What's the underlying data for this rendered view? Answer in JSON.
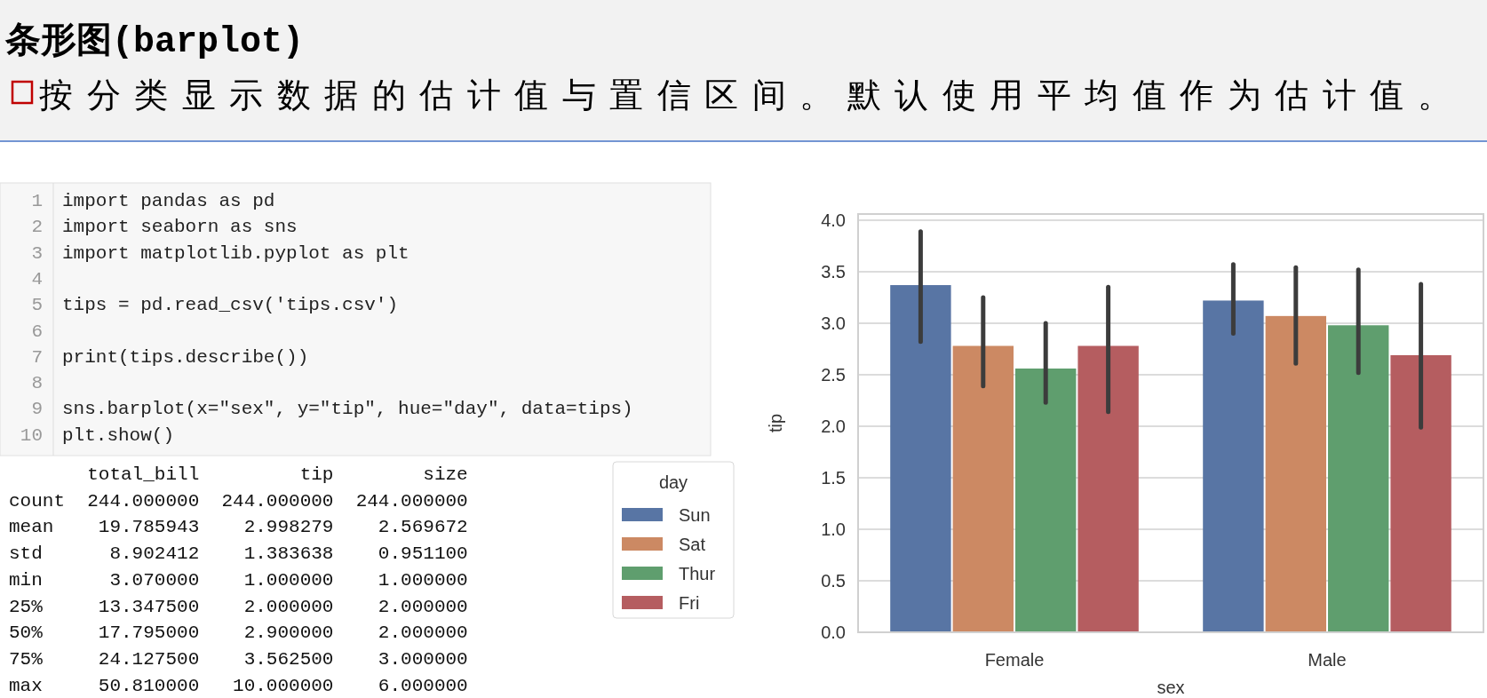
{
  "chart_data": {
    "type": "bar",
    "title": "条形图(barplot)",
    "subtitle": "按分类显示数据的估计值与置信区间。默认使用平均值作为估计值。",
    "xlabel": "sex",
    "ylabel": "tip",
    "legend_title": "day",
    "categories": [
      "Female",
      "Male"
    ],
    "series": [
      {
        "name": "Sun",
        "color": "#5875a4",
        "values": [
          3.37,
          3.22
        ],
        "errors": [
          [
            2.82,
            3.89
          ],
          [
            2.9,
            3.57
          ]
        ]
      },
      {
        "name": "Sat",
        "color": "#cc8963",
        "values": [
          2.78,
          3.07
        ],
        "errors": [
          [
            2.39,
            3.25
          ],
          [
            2.61,
            3.54
          ]
        ]
      },
      {
        "name": "Thur",
        "color": "#5f9e6e",
        "values": [
          2.56,
          2.98
        ],
        "errors": [
          [
            2.23,
            3.0
          ],
          [
            2.52,
            3.52
          ]
        ]
      },
      {
        "name": "Fri",
        "color": "#b55d60",
        "values": [
          2.78,
          2.69
        ],
        "errors": [
          [
            2.14,
            3.35
          ],
          [
            1.99,
            3.38
          ]
        ]
      }
    ],
    "ylim": [
      0,
      4.06
    ],
    "yticks": [
      {
        "value": 0,
        "label": "0.0"
      },
      {
        "value": 0.5,
        "label": "0.5"
      },
      {
        "value": 1,
        "label": "1.0"
      },
      {
        "value": 1.5,
        "label": "1.5"
      },
      {
        "value": 2,
        "label": "2.0"
      },
      {
        "value": 2.5,
        "label": "2.5"
      },
      {
        "value": 3,
        "label": "3.0"
      },
      {
        "value": 3.5,
        "label": "3.5"
      },
      {
        "value": 4,
        "label": "4.0"
      }
    ],
    "grid": "y",
    "legend": "left",
    "annotations": [
      "1\timport pandas as pd",
      "2\timport seaborn as sns",
      "3\timport matplotlib.pyplot as plt",
      "4\t",
      "5\ttips = pd.read_csv('tips.csv')",
      "6\t",
      "7\tprint(tips.describe())",
      "8\t",
      "9\tsns.barplot(x=\"sex\", y=\"tip\", hue=\"day\", data=tips)",
      "10\tplt.show()",
      "       total_bill         tip        size",
      "count  244.000000  244.000000  244.000000",
      "mean    19.785943    2.998279    2.569672",
      "std      8.902412    1.383638    0.951100",
      "min      3.070000    1.000000    1.000000",
      "25%     13.347500    2.000000    2.000000",
      "50%     17.795000    2.900000    2.000000",
      "75%     24.127500    3.562500    3.000000",
      "max     50.810000   10.000000    6.000000"
    ]
  }
}
